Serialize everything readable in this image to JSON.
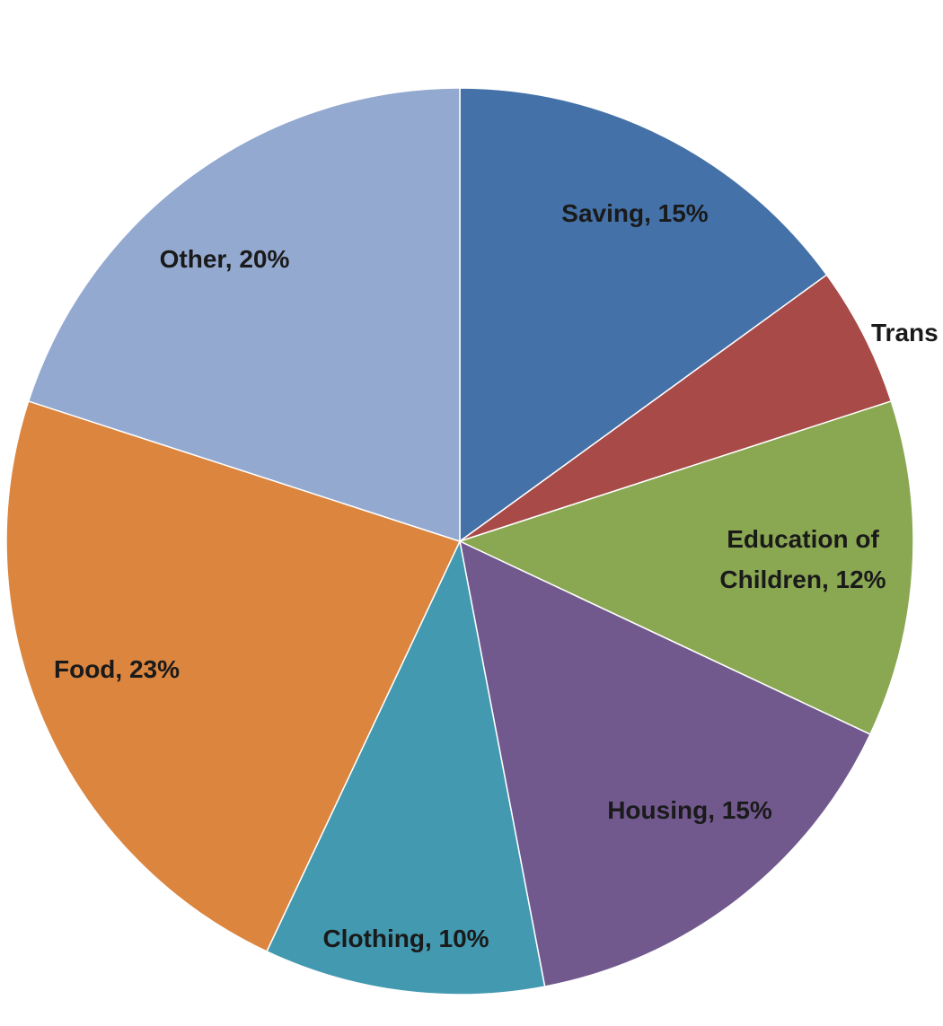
{
  "chart_data": {
    "type": "pie",
    "title": "",
    "start_angle_deg": 0,
    "direction": "clockwise",
    "slices": [
      {
        "name": "Saving",
        "value": 15,
        "label": "Saving, 15%",
        "color": "#4472a8"
      },
      {
        "name": "Trans",
        "value": 5,
        "label": "Trans",
        "color": "#a84a48"
      },
      {
        "name": "Education of Children",
        "value": 12,
        "label": [
          "Education of",
          "Children, 12%"
        ],
        "color": "#8aa752"
      },
      {
        "name": "Housing",
        "value": 15,
        "label": "Housing, 15%",
        "color": "#71598e"
      },
      {
        "name": "Clothing",
        "value": 10,
        "label": "Clothing, 10%",
        "color": "#4299b0"
      },
      {
        "name": "Food",
        "value": 23,
        "label": "Food, 23%",
        "color": "#db853f"
      },
      {
        "name": "Other",
        "value": 20,
        "label": "Other, 20%",
        "color": "#93a9d0"
      }
    ]
  }
}
